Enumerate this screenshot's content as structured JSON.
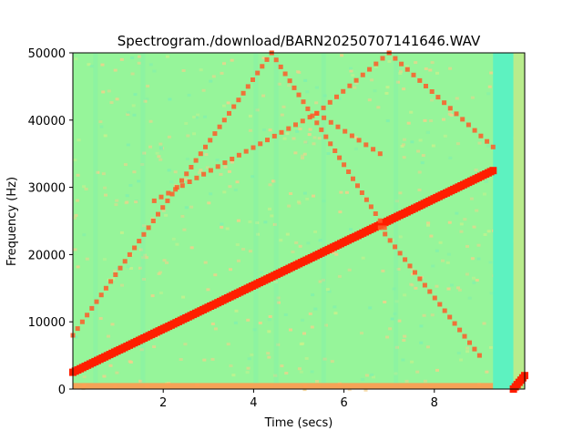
{
  "chart_data": {
    "type": "heatmap",
    "title": "Spectrogram./download/BARN20250707141646.WAV",
    "xlabel": "Time (secs)",
    "ylabel": "Frequency (Hz)",
    "xlim": [
      0,
      10
    ],
    "ylim": [
      0,
      50000
    ],
    "xticks": [
      2,
      4,
      6,
      8
    ],
    "xtick_labels": [
      "2",
      "4",
      "6",
      "8"
    ],
    "yticks": [
      0,
      10000,
      20000,
      30000,
      40000,
      50000
    ],
    "ytick_labels": [
      "0",
      "10000",
      "20000",
      "30000",
      "40000",
      "50000"
    ],
    "colormap": "rainbow",
    "colors": {
      "background": "#96f59a",
      "signal": "#ff1e00",
      "harmonic": "#ff5a28",
      "faint": "#f4d08a",
      "gap": "#5df2c0",
      "baseline": "#ff9a50"
    },
    "series": [
      {
        "kind": "main-sweep",
        "points": [
          [
            0.0,
            2500
          ],
          [
            9.3,
            32500
          ]
        ]
      },
      {
        "kind": "harmonic-up",
        "points": [
          [
            0.0,
            8000
          ],
          [
            4.4,
            50000
          ]
        ]
      },
      {
        "kind": "harmonic-down",
        "points": [
          [
            4.4,
            50000
          ],
          [
            6.9,
            24000
          ]
        ]
      },
      {
        "kind": "harmonic-up",
        "points": [
          [
            5.4,
            41000
          ],
          [
            7.0,
            50000
          ]
        ]
      },
      {
        "kind": "harmonic-down",
        "points": [
          [
            7.0,
            50000
          ],
          [
            9.3,
            36000
          ]
        ]
      },
      {
        "kind": "harmonic-up",
        "points": [
          [
            1.8,
            28000
          ],
          [
            5.4,
            41000
          ]
        ]
      },
      {
        "kind": "harmonic-down",
        "points": [
          [
            5.4,
            41000
          ],
          [
            6.8,
            35000
          ]
        ]
      },
      {
        "kind": "harmonic-down",
        "points": [
          [
            6.8,
            24000
          ],
          [
            9.0,
            5000
          ]
        ]
      }
    ],
    "gap_region": {
      "x": [
        9.3,
        9.75
      ]
    },
    "tail_sweep": {
      "points": [
        [
          9.75,
          0
        ],
        [
          10.0,
          2000
        ]
      ]
    }
  }
}
